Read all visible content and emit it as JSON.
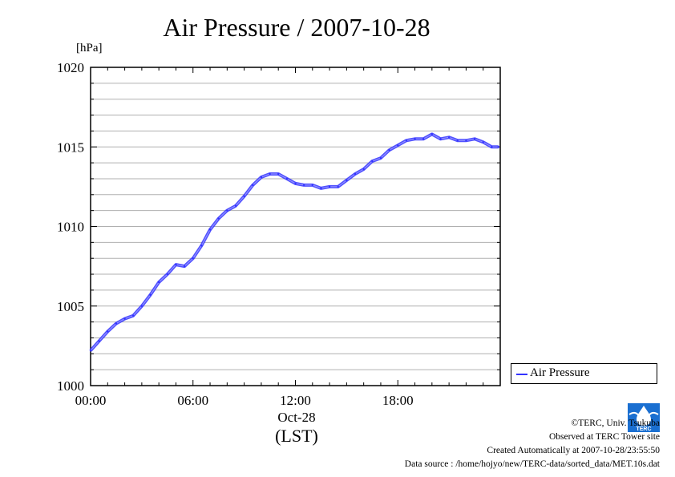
{
  "title": "Air Pressure / 2007-10-28",
  "date_label": "Oct-28",
  "timezone_label": "(LST)",
  "legend": {
    "series_name": "Air Pressure",
    "color": "#3333ff"
  },
  "logo": {
    "icon": "terc-logo-icon",
    "text": "TERC",
    "color": "#1a6fd1"
  },
  "footer": {
    "copyright": "©TERC, Univ. Tsukuba",
    "observed": "Observed at TERC Tower site",
    "created": "Created Automatically at 2007-10-28/23:55:50",
    "source": "Data source : /home/hojyo/new/TERC-data/sorted_data/MET.10s.dat"
  },
  "chart_data": {
    "type": "line",
    "title": "Air Pressure / 2007-10-28",
    "ylabel": "[hPa]",
    "xlabel": "(LST)",
    "ylim": [
      1000,
      1020
    ],
    "xlim": [
      0,
      24
    ],
    "y_ticks": [
      "1000",
      "1005",
      "1010",
      "1015",
      "1020"
    ],
    "x_ticks": [
      {
        "hour": 0,
        "label": "00:00"
      },
      {
        "hour": 6,
        "label": "06:00"
      },
      {
        "hour": 12,
        "label": "12:00"
      },
      {
        "hour": 18,
        "label": "18:00"
      }
    ],
    "grid": true,
    "legend_position": "right",
    "series": [
      {
        "name": "Air Pressure",
        "color": "#3333ff",
        "x": [
          0.0,
          0.5,
          1.0,
          1.5,
          2.0,
          2.5,
          3.0,
          3.5,
          4.0,
          4.5,
          5.0,
          5.5,
          6.0,
          6.5,
          7.0,
          7.5,
          8.0,
          8.5,
          9.0,
          9.5,
          10.0,
          10.5,
          11.0,
          11.5,
          12.0,
          12.5,
          13.0,
          13.5,
          14.0,
          14.5,
          15.0,
          15.5,
          16.0,
          16.5,
          17.0,
          17.5,
          18.0,
          18.5,
          19.0,
          19.5,
          20.0,
          20.5,
          21.0,
          21.5,
          22.0,
          22.5,
          23.0,
          23.5,
          23.9
        ],
        "y": [
          1002.2,
          1002.8,
          1003.4,
          1003.9,
          1004.2,
          1004.4,
          1005.0,
          1005.7,
          1006.5,
          1007.0,
          1007.6,
          1007.5,
          1008.0,
          1008.8,
          1009.8,
          1010.5,
          1011.0,
          1011.3,
          1011.9,
          1012.6,
          1013.1,
          1013.3,
          1013.3,
          1013.0,
          1012.7,
          1012.6,
          1012.6,
          1012.4,
          1012.5,
          1012.5,
          1012.9,
          1013.3,
          1013.6,
          1014.1,
          1014.3,
          1014.8,
          1015.1,
          1015.4,
          1015.5,
          1015.5,
          1015.8,
          1015.5,
          1015.6,
          1015.4,
          1015.4,
          1015.5,
          1015.3,
          1015.0,
          1015.0
        ]
      }
    ]
  }
}
